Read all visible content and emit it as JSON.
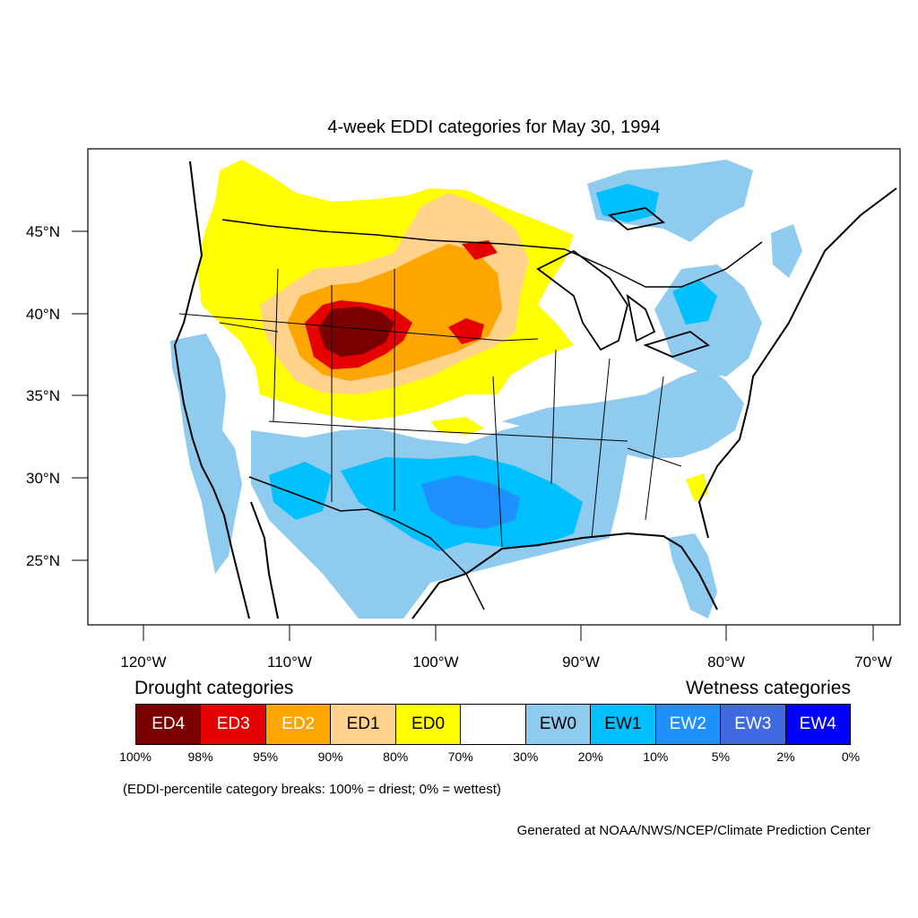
{
  "title": "4-week EDDI categories for May 30, 1994",
  "lat_labels": [
    "45°N",
    "40°N",
    "35°N",
    "30°N",
    "25°N"
  ],
  "lon_labels": [
    "120°W",
    "110°W",
    "100°W",
    "90°W",
    "80°W",
    "70°W"
  ],
  "colors": {
    "ED4": "#7a0000",
    "ED3": "#e60000",
    "ED2": "#ffa500",
    "ED1": "#ffd38c",
    "ED0": "#ffff00",
    "NEUTRAL": "#ffffff",
    "EW0": "#8ecbee",
    "EW1": "#00c0ff",
    "EW2": "#1e90ff",
    "EW3": "#4169e1",
    "EW4": "#0000ff"
  },
  "legend": {
    "drought_heading": "Drought categories",
    "wetness_heading": "Wetness categories",
    "categories": [
      {
        "label": "ED4",
        "color": "#7a0000",
        "text_color": "#ffffff"
      },
      {
        "label": "ED3",
        "color": "#e60000",
        "text_color": "#ffffff"
      },
      {
        "label": "ED2",
        "color": "#ffa500",
        "text_color": "#ffffff"
      },
      {
        "label": "ED1",
        "color": "#ffd38c",
        "text_color": "#000000"
      },
      {
        "label": "ED0",
        "color": "#ffff00",
        "text_color": "#000000"
      },
      {
        "label": "",
        "color": "#ffffff",
        "text_color": "#000000"
      },
      {
        "label": "EW0",
        "color": "#8ecbee",
        "text_color": "#000000"
      },
      {
        "label": "EW1",
        "color": "#00c0ff",
        "text_color": "#000000"
      },
      {
        "label": "EW2",
        "color": "#1e90ff",
        "text_color": "#ffffff"
      },
      {
        "label": "EW3",
        "color": "#4169e1",
        "text_color": "#ffffff"
      },
      {
        "label": "EW4",
        "color": "#0000ff",
        "text_color": "#ffffff"
      }
    ],
    "breaks": [
      "100%",
      "98%",
      "95%",
      "90%",
      "80%",
      "70%",
      "30%",
      "20%",
      "10%",
      "5%",
      "2%",
      "0%"
    ]
  },
  "breaks_note": "(EDDI-percentile category breaks: 100% = driest; 0% = wettest)",
  "credit": "Generated at NOAA/NWS/NCEP/Climate Prediction Center"
}
